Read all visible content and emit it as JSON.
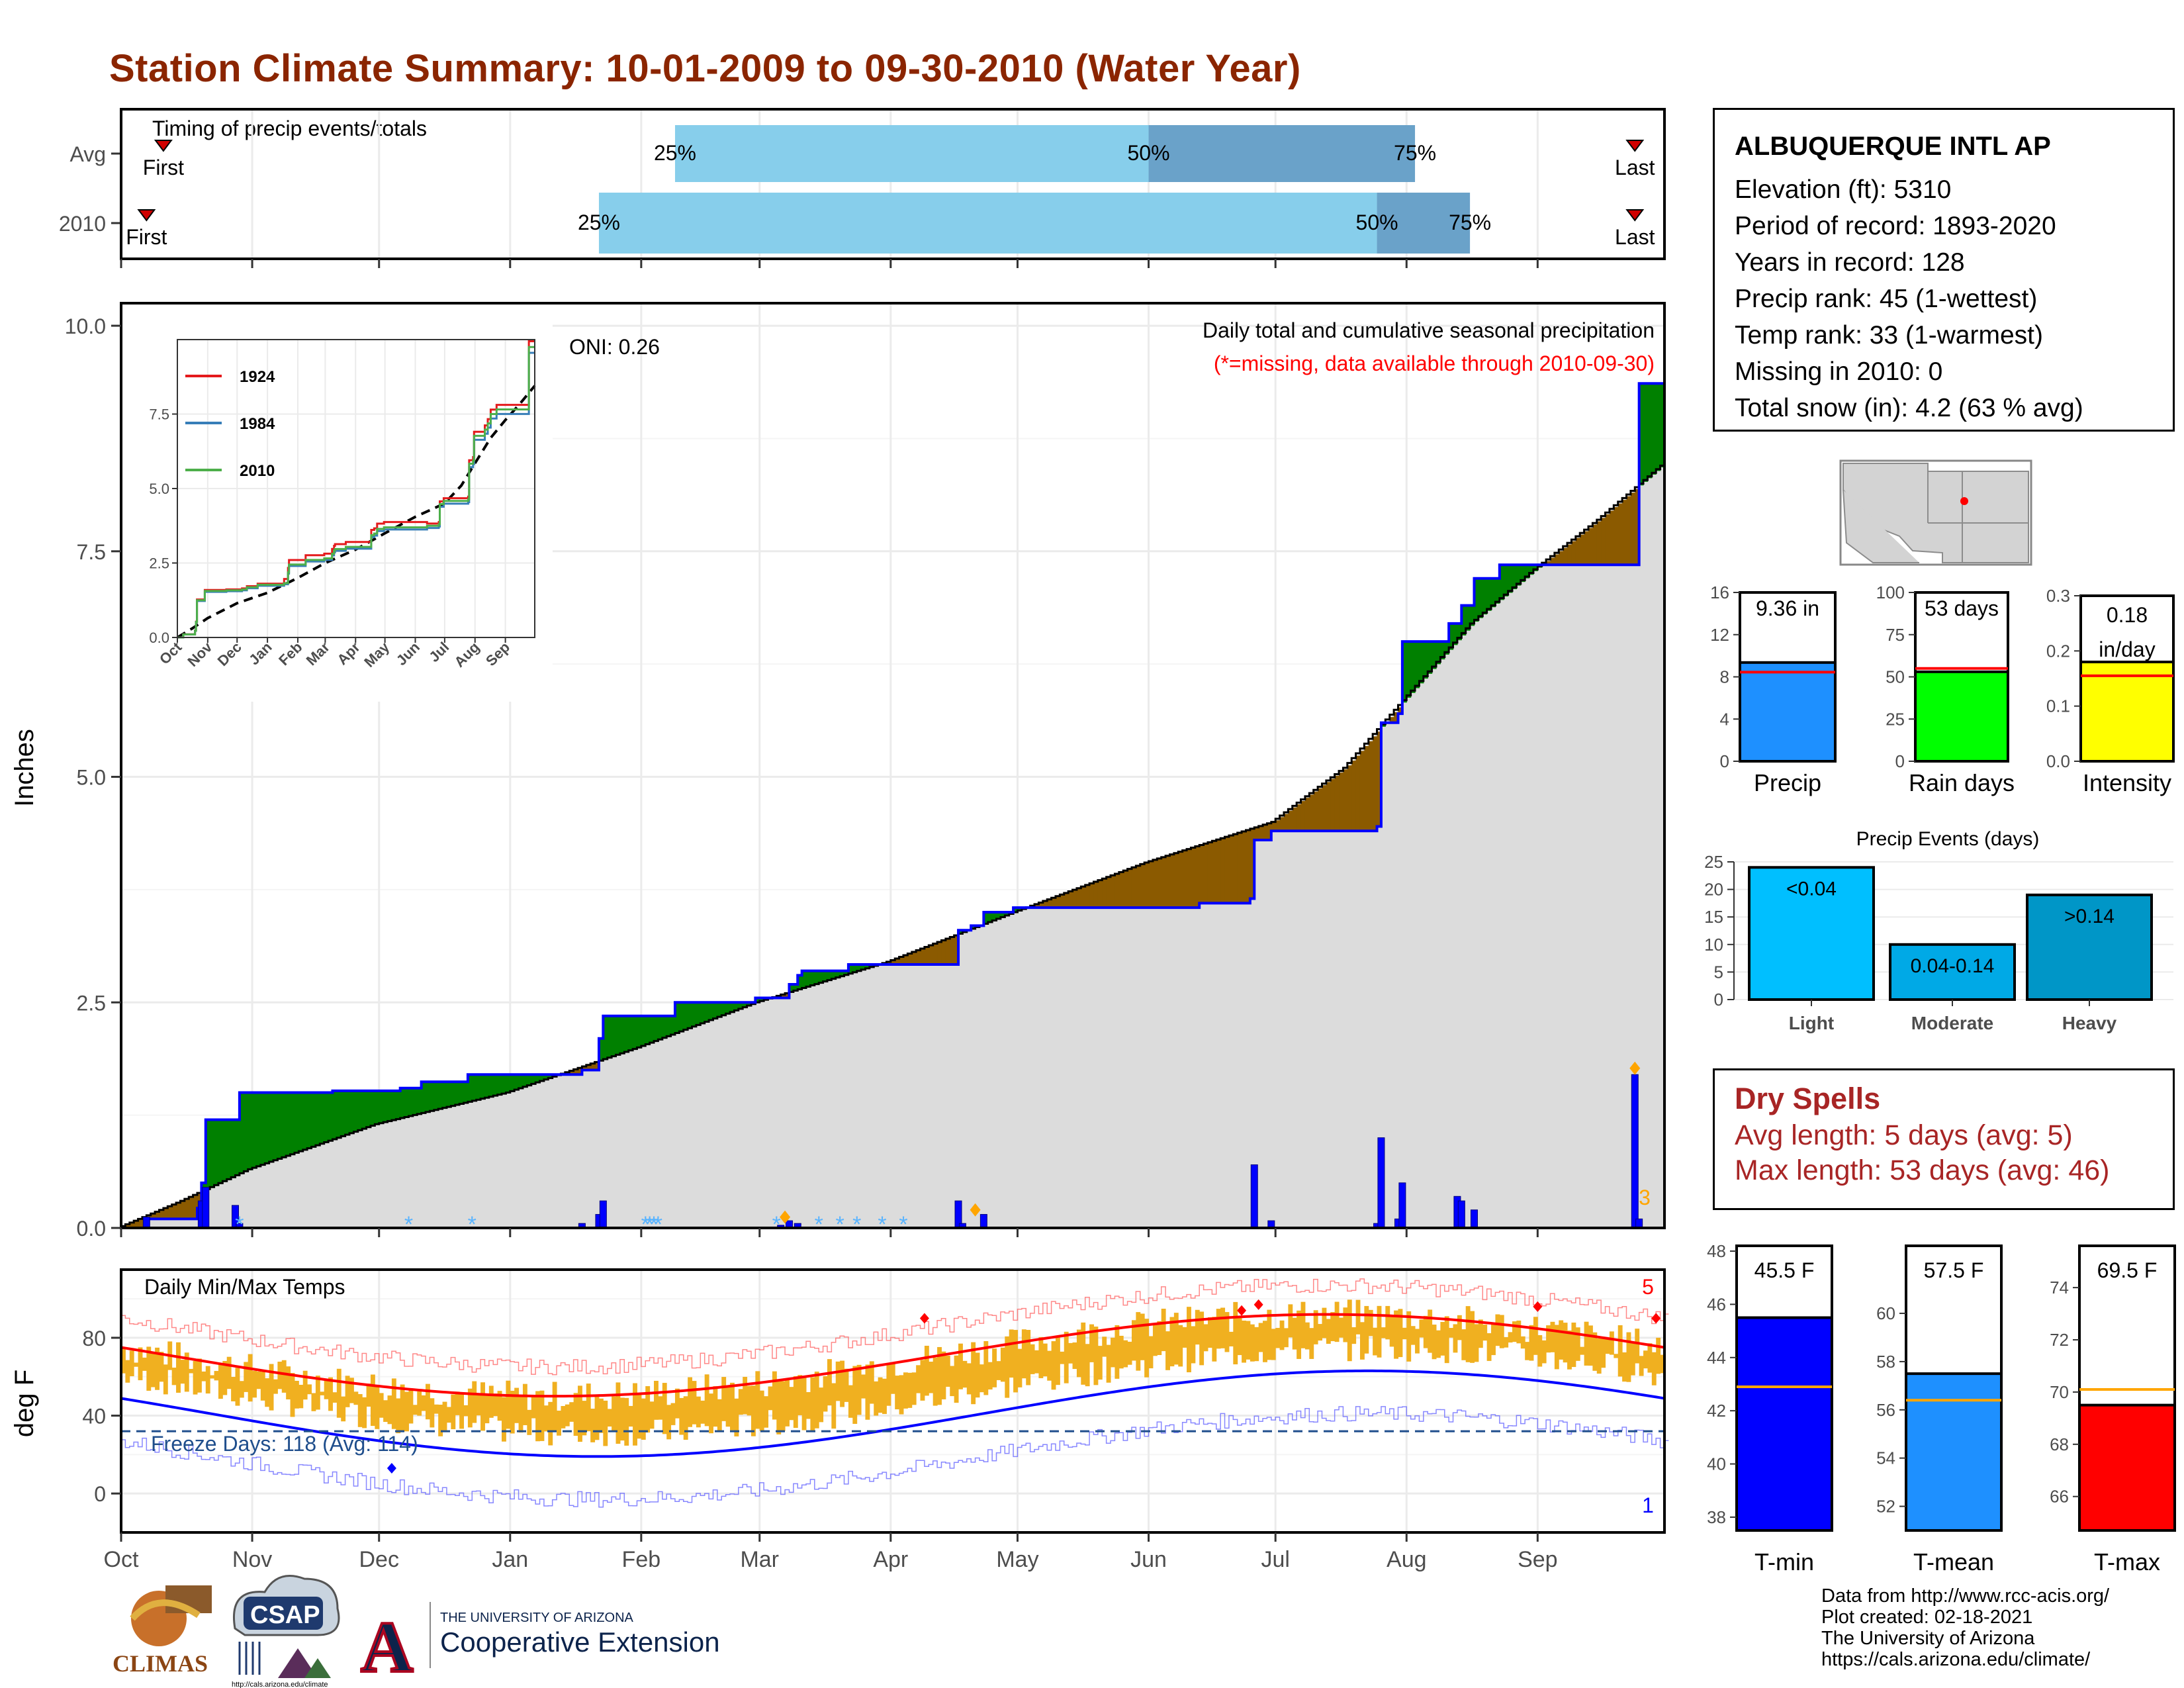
{
  "title": "Station Climate Summary: 10-01-2009 to 09-30-2010 (Water Year)",
  "station": {
    "name": "ALBUQUERQUE INTL AP",
    "lines": [
      "Elevation (ft): 5310",
      "Period of record: 1893-2020",
      "Years in record: 128",
      "Precip rank: 45 (1-wettest)",
      "Temp rank: 33 (1-warmest)",
      "Missing in 2010: 0",
      "Total snow (in): 4.2 (63 % avg)"
    ]
  },
  "months": [
    "Oct",
    "Nov",
    "Dec",
    "Jan",
    "Feb",
    "Mar",
    "Apr",
    "May",
    "Jun",
    "Jul",
    "Aug",
    "Sep"
  ],
  "month_days": [
    0,
    31,
    61,
    92,
    123,
    151,
    182,
    212,
    243,
    273,
    304,
    335
  ],
  "colors": {
    "title": "#8b2500",
    "light_blue": "#87ceeb",
    "mid_blue": "#6aa2c9",
    "green": "#008000",
    "brown": "#8b5a00",
    "gray_fill": "#dcdcdc",
    "blue_line": "#0000ff",
    "orange": "#ffa500",
    "red": "#ff0000",
    "temp_bar": "#f0b020",
    "dry": "#a82525"
  },
  "timing": {
    "label": "Timing of precip events/totals",
    "rows": [
      {
        "name": "Avg",
        "first_day": 10,
        "last_day": 358,
        "p25_day": 131,
        "p50_day": 243,
        "p75_day": 306
      },
      {
        "name": "2010",
        "first_day": 6,
        "last_day": 358,
        "p25_day": 113,
        "p50_day": 297,
        "p75_day": 319
      }
    ],
    "first_label": "First",
    "last_label": "Last",
    "pct_labels": [
      "25%",
      "50%",
      "75%"
    ]
  },
  "precip": {
    "ylabel": "Inches",
    "ylim": [
      0,
      10.0
    ],
    "yticks": [
      "0.0",
      "2.5",
      "5.0",
      "7.5",
      "10.0"
    ],
    "title_line1": "Daily total and cumulative seasonal precipitation",
    "title_line2": "(*=missing, data available through 2010-09-30)",
    "oni": "ONI: 0.26",
    "corner_count": "3",
    "avg_cumulative": [
      [
        0,
        0
      ],
      [
        15,
        0.3
      ],
      [
        31,
        0.65
      ],
      [
        61,
        1.15
      ],
      [
        92,
        1.5
      ],
      [
        123,
        2.0
      ],
      [
        151,
        2.5
      ],
      [
        182,
        2.95
      ],
      [
        212,
        3.5
      ],
      [
        243,
        4.05
      ],
      [
        273,
        4.5
      ],
      [
        280,
        4.75
      ],
      [
        290,
        5.1
      ],
      [
        304,
        5.85
      ],
      [
        320,
        6.7
      ],
      [
        335,
        7.3
      ],
      [
        350,
        7.85
      ],
      [
        365,
        8.45
      ]
    ],
    "obs_cumulative": [
      [
        0,
        0
      ],
      [
        6,
        0.1
      ],
      [
        18,
        0.22
      ],
      [
        19,
        0.5
      ],
      [
        20,
        1.2
      ],
      [
        27,
        1.2
      ],
      [
        28,
        1.5
      ],
      [
        50,
        1.52
      ],
      [
        66,
        1.55
      ],
      [
        71,
        1.62
      ],
      [
        82,
        1.7
      ],
      [
        109,
        1.75
      ],
      [
        113,
        2.1
      ],
      [
        114,
        2.35
      ],
      [
        130,
        2.35
      ],
      [
        131,
        2.5
      ],
      [
        150,
        2.55
      ],
      [
        157,
        2.55
      ],
      [
        158,
        2.7
      ],
      [
        160,
        2.8
      ],
      [
        161,
        2.85
      ],
      [
        172,
        2.92
      ],
      [
        190,
        2.92
      ],
      [
        198,
        3.3
      ],
      [
        201,
        3.35
      ],
      [
        204,
        3.5
      ],
      [
        211,
        3.55
      ],
      [
        255,
        3.6
      ],
      [
        267,
        3.65
      ],
      [
        268,
        4.3
      ],
      [
        272,
        4.4
      ],
      [
        297,
        4.45
      ],
      [
        298,
        5.6
      ],
      [
        302,
        5.7
      ],
      [
        303,
        6.5
      ],
      [
        313,
        6.5
      ],
      [
        314,
        6.7
      ],
      [
        317,
        6.9
      ],
      [
        320,
        7.2
      ],
      [
        326,
        7.35
      ],
      [
        358,
        7.35
      ],
      [
        359,
        9.36
      ],
      [
        365,
        9.36
      ]
    ],
    "daily_bars": [
      [
        6,
        0.12
      ],
      [
        19,
        0.3
      ],
      [
        20,
        0.45
      ],
      [
        27,
        0.25
      ],
      [
        28,
        0.05
      ],
      [
        109,
        0.05
      ],
      [
        113,
        0.15
      ],
      [
        114,
        0.3
      ],
      [
        156,
        0.03
      ],
      [
        158,
        0.08
      ],
      [
        160,
        0.05
      ],
      [
        198,
        0.3
      ],
      [
        199,
        0.05
      ],
      [
        204,
        0.15
      ],
      [
        268,
        0.7
      ],
      [
        272,
        0.08
      ],
      [
        297,
        0.05
      ],
      [
        298,
        1.0
      ],
      [
        302,
        0.1
      ],
      [
        303,
        0.5
      ],
      [
        316,
        0.35
      ],
      [
        317,
        0.3
      ],
      [
        320,
        0.2
      ],
      [
        358,
        1.7
      ],
      [
        359,
        0.1
      ]
    ],
    "snow_days": [
      28,
      68,
      83,
      124,
      125,
      126,
      127,
      155,
      165,
      170,
      174,
      180,
      185
    ],
    "orange_marks": [
      [
        157,
        0.12
      ],
      [
        202,
        0.2
      ],
      [
        358,
        1.77
      ]
    ]
  },
  "inset": {
    "ylim": [
      0,
      10
    ],
    "yticks": [
      "0.0",
      "2.5",
      "5.0",
      "7.5"
    ],
    "months": [
      "Oct",
      "Nov",
      "Dec",
      "Jan",
      "Feb",
      "Mar",
      "Apr",
      "May",
      "Jun",
      "Jul",
      "Aug",
      "Sep"
    ],
    "series": [
      {
        "name": "1924",
        "color": "#e41a1c"
      },
      {
        "name": "1984",
        "color": "#377eb8"
      },
      {
        "name": "2010",
        "color": "#4daf4a"
      }
    ]
  },
  "temps": {
    "ylabel": "deg F",
    "ylim": [
      -20,
      115
    ],
    "yticks": [
      "0",
      "40",
      "80"
    ],
    "title": "Daily Min/Max Temps",
    "freeze": "Freeze Days: 118 (Avg: 114)",
    "count_hi": "5",
    "count_lo": "1"
  },
  "precip_bars": {
    "precip": {
      "label": "Precip",
      "value_label": "9.36 in",
      "value": 9.36,
      "avg": 8.45,
      "ylim": [
        0,
        16
      ],
      "yticks": [
        "0",
        "4",
        "8",
        "12",
        "16"
      ],
      "color": "#1e90ff"
    },
    "rain": {
      "label": "Rain days",
      "value_label": "53 days",
      "value": 53,
      "avg": 55,
      "ylim": [
        0,
        100
      ],
      "yticks": [
        "0",
        "25",
        "50",
        "75",
        "100"
      ],
      "color": "#00ff00"
    },
    "intensity": {
      "label": "Intensity",
      "value_label1": "0.18",
      "value_label2": "in/day",
      "value": 0.18,
      "avg": 0.155,
      "ylim": [
        0,
        0.3
      ],
      "yticks": [
        "0.0",
        "0.1",
        "0.2",
        "0.3"
      ],
      "color": "#ffff00"
    }
  },
  "events": {
    "title": "Precip Events (days)",
    "ylim": [
      0,
      25
    ],
    "yticks": [
      "0",
      "5",
      "10",
      "15",
      "20",
      "25"
    ],
    "bars": [
      {
        "category": "Light",
        "label": "<0.04",
        "value": 24,
        "color": "#00bfff"
      },
      {
        "category": "Moderate",
        "label": "0.04-0.14",
        "value": 10,
        "color": "#00a9e6"
      },
      {
        "category": "Heavy",
        "label": ">0.14",
        "value": 19,
        "color": "#0096c7"
      }
    ]
  },
  "dry": {
    "heading": "Dry Spells",
    "line1": "Avg length: 5 days (avg: 5)",
    "line2": "Max length: 53 days (avg: 46)"
  },
  "temp_bars": {
    "tmin": {
      "label": "T-min",
      "value_label": "45.5 F",
      "value": 45.5,
      "avg": 42.9,
      "ylim": [
        37.5,
        48.2
      ],
      "yticks": [
        "38",
        "40",
        "42",
        "44",
        "46",
        "48"
      ],
      "color": "#0000ff"
    },
    "tmean": {
      "label": "T-mean",
      "value_label": "57.5 F",
      "value": 57.5,
      "avg": 56.4,
      "ylim": [
        51.0,
        62.8
      ],
      "yticks": [
        "52",
        "54",
        "56",
        "58",
        "60"
      ],
      "color": "#1e90ff"
    },
    "tmax": {
      "label": "T-max",
      "value_label": "69.5 F",
      "value": 69.5,
      "avg": 70.1,
      "ylim": [
        64.7,
        75.6
      ],
      "yticks": [
        "66",
        "68",
        "70",
        "72",
        "74"
      ],
      "color": "#ff0000"
    }
  },
  "credits": [
    "Data from http://www.rcc-acis.org/",
    "Plot created: 02-18-2021",
    "The University of Arizona",
    "https://cals.arizona.edu/climate/"
  ],
  "logos": {
    "climas": "CLIMAS",
    "csap": "CSAP",
    "csap_url": "http://cals.arizona.edu/climate",
    "ua_line1": "THE UNIVERSITY OF ARIZONA",
    "ua_line2": "Cooperative Extension",
    "ua_letter": "A"
  }
}
